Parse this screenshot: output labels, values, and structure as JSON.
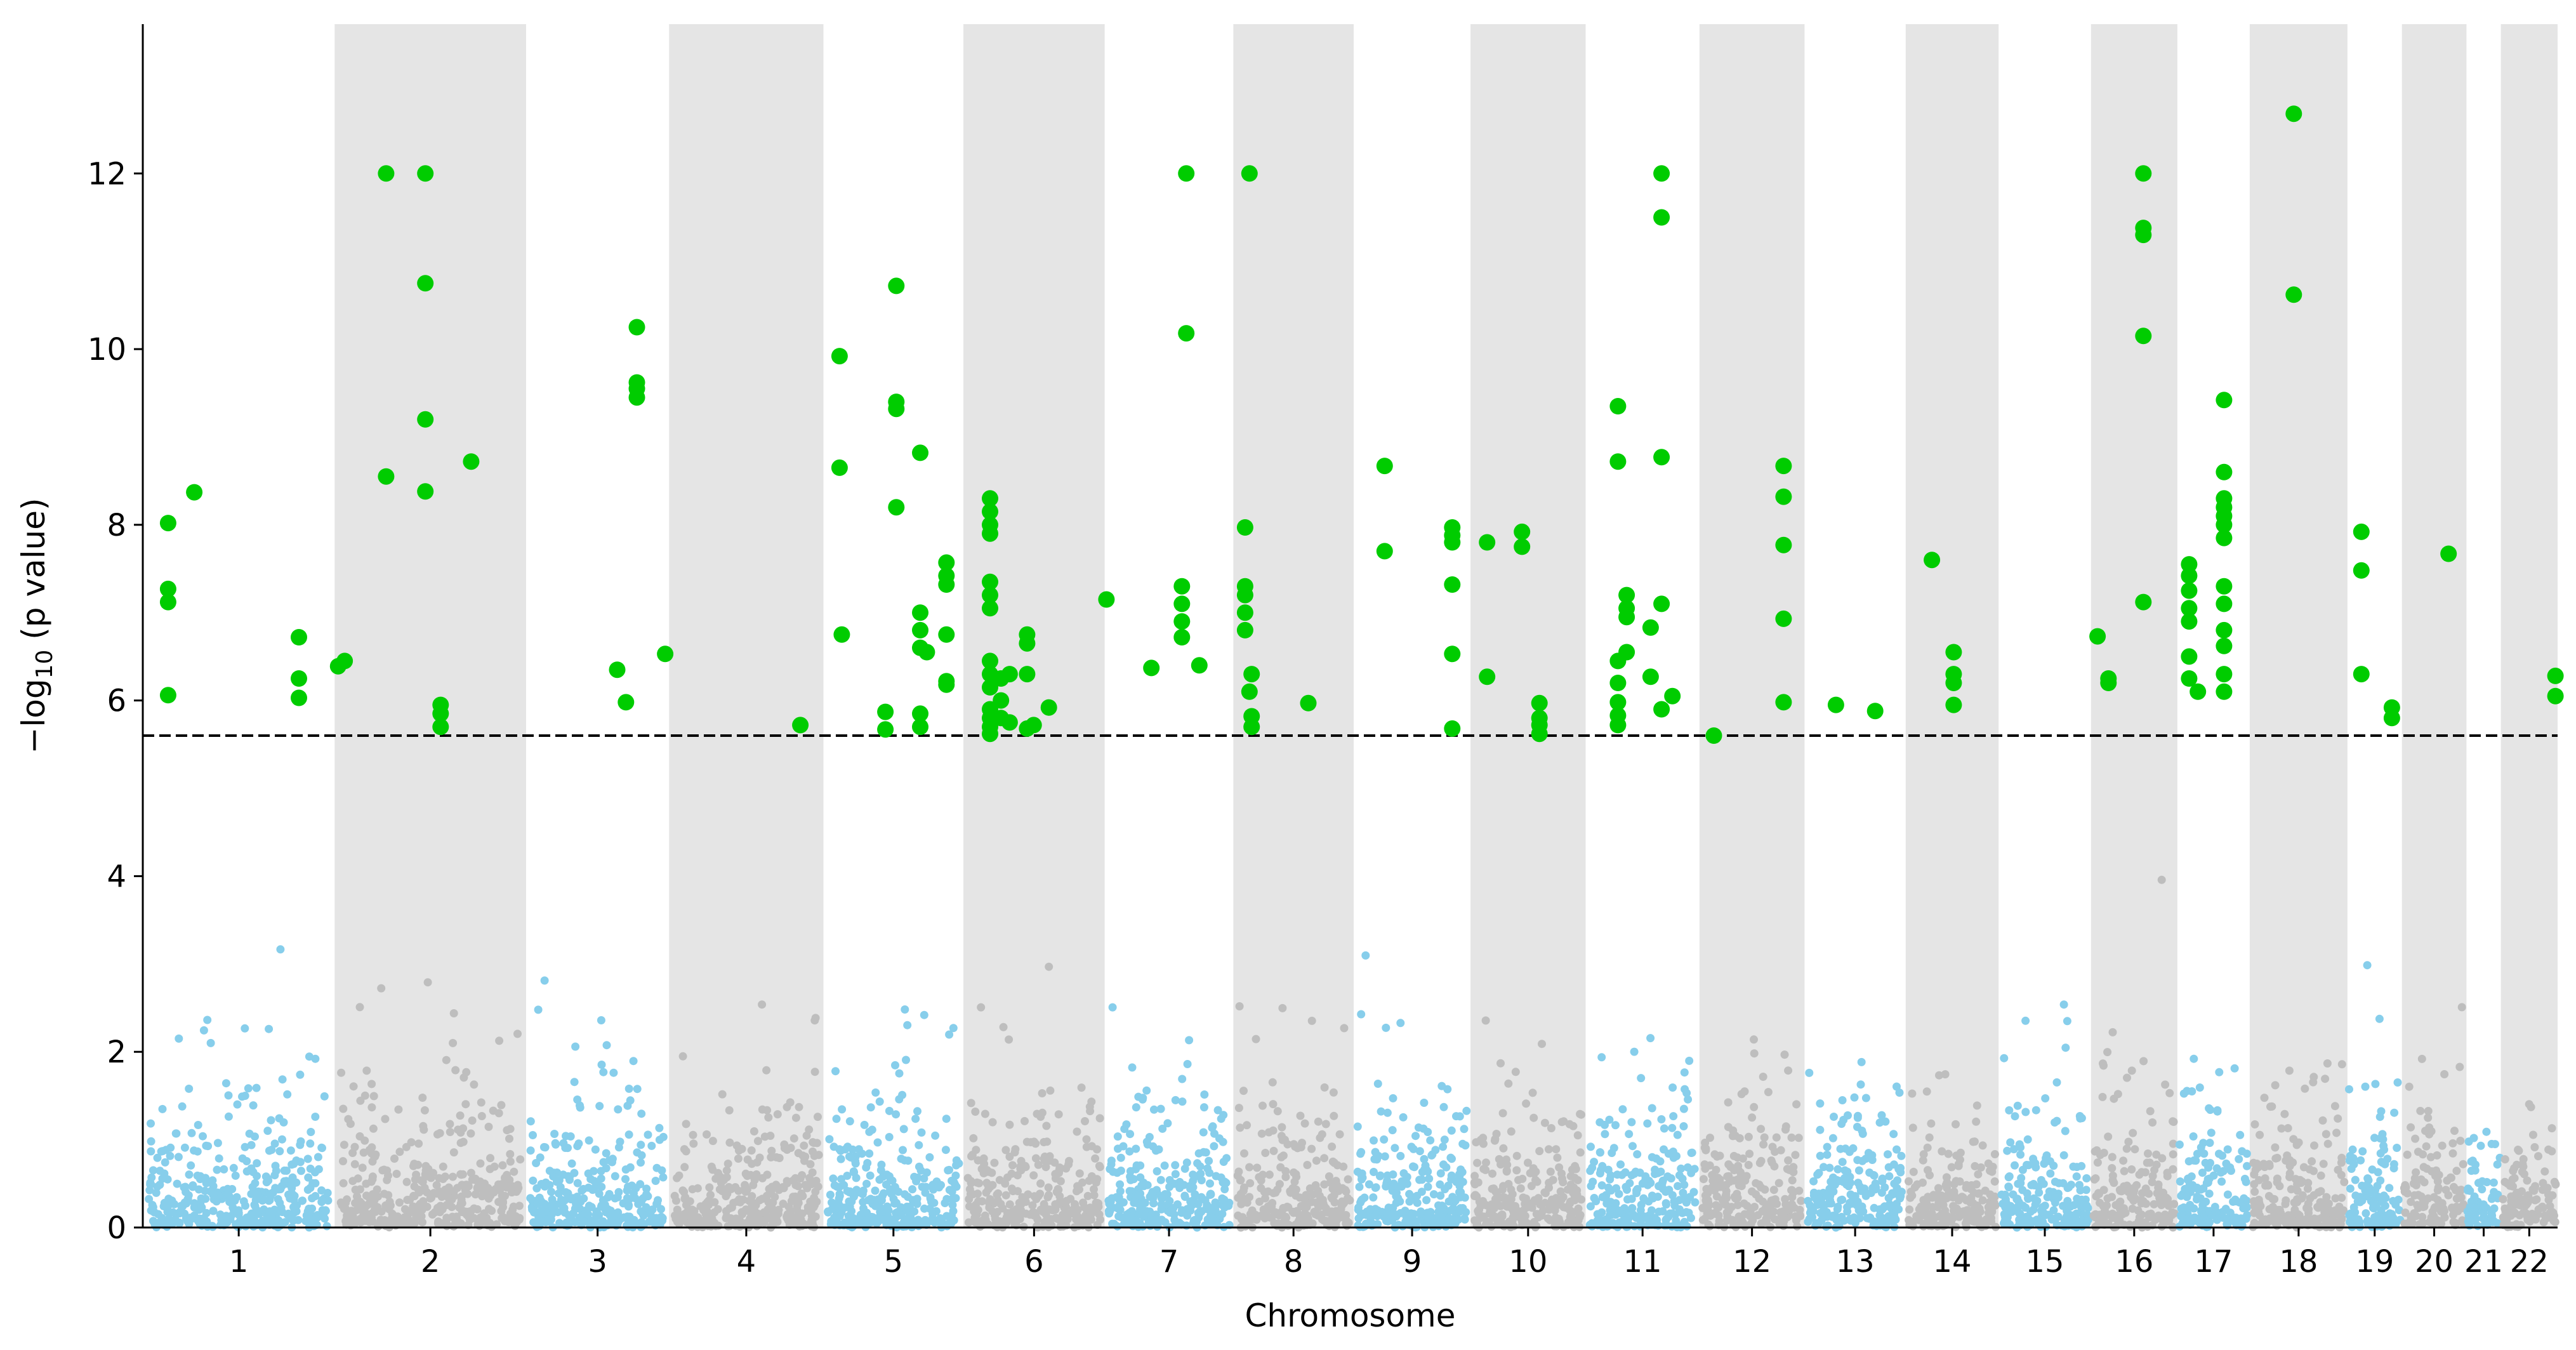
{
  "chart_data": {
    "type": "scatter",
    "title": "",
    "xlabel": "Chromosome",
    "ylabel_parts": [
      "−log",
      "10",
      " (p value)"
    ],
    "ylim": [
      0,
      13.7
    ],
    "yticks": [
      0,
      2,
      4,
      6,
      8,
      10,
      12
    ],
    "threshold": 5.6,
    "threshold_style": "dashed",
    "colors": {
      "odd_chromosome": "#87ceeb",
      "even_chromosome": "#bebebe",
      "significant": "#00cc00",
      "shade": "#e5e5e5",
      "threshold": "#000000"
    },
    "chromosomes": [
      {
        "label": "1",
        "range": [
          -0.3,
          43.7
        ]
      },
      {
        "label": "2",
        "range": [
          43.7,
          87.6
        ]
      },
      {
        "label": "3",
        "range": [
          87.6,
          120.4
        ]
      },
      {
        "label": "4",
        "range": [
          120.4,
          155.8
        ]
      },
      {
        "label": "5",
        "range": [
          155.8,
          187.9
        ]
      },
      {
        "label": "6",
        "range": [
          187.9,
          220.3
        ]
      },
      {
        "label": "7",
        "range": [
          220.3,
          249.8
        ]
      },
      {
        "label": "8",
        "range": [
          249.8,
          277.4
        ]
      },
      {
        "label": "9",
        "range": [
          277.4,
          304.2
        ]
      },
      {
        "label": "10",
        "range": [
          304.2,
          330.6
        ]
      },
      {
        "label": "11",
        "range": [
          330.6,
          356.7
        ]
      },
      {
        "label": "12",
        "range": [
          356.7,
          380.8
        ]
      },
      {
        "label": "13",
        "range": [
          380.8,
          404.0
        ]
      },
      {
        "label": "14",
        "range": [
          404.0,
          425.3
        ]
      },
      {
        "label": "15",
        "range": [
          425.3,
          446.5
        ]
      },
      {
        "label": "16",
        "range": [
          446.5,
          466.3
        ]
      },
      {
        "label": "17",
        "range": [
          466.3,
          482.9
        ]
      },
      {
        "label": "18",
        "range": [
          482.9,
          505.3
        ]
      },
      {
        "label": "19",
        "range": [
          505.3,
          517.8
        ]
      },
      {
        "label": "20",
        "range": [
          517.8,
          532.6
        ]
      },
      {
        "label": "21",
        "range": [
          532.6,
          540.5
        ]
      },
      {
        "label": "22",
        "range": [
          540.5,
          553.5
        ]
      }
    ],
    "significant_points": [
      {
        "x": 5.5,
        "y": 8.02
      },
      {
        "x": 5.5,
        "y": 7.27
      },
      {
        "x": 5.5,
        "y": 7.12
      },
      {
        "x": 5.5,
        "y": 6.06
      },
      {
        "x": 11.5,
        "y": 8.37
      },
      {
        "x": 35.5,
        "y": 6.72
      },
      {
        "x": 35.5,
        "y": 6.25
      },
      {
        "x": 35.5,
        "y": 6.03
      },
      {
        "x": 44.5,
        "y": 6.39
      },
      {
        "x": 46.0,
        "y": 6.45
      },
      {
        "x": 55.5,
        "y": 12.0
      },
      {
        "x": 55.5,
        "y": 8.55
      },
      {
        "x": 64.5,
        "y": 12.0
      },
      {
        "x": 64.5,
        "y": 10.75
      },
      {
        "x": 64.5,
        "y": 9.2
      },
      {
        "x": 64.5,
        "y": 8.38
      },
      {
        "x": 68.0,
        "y": 5.95
      },
      {
        "x": 68.0,
        "y": 5.85
      },
      {
        "x": 68.0,
        "y": 5.7
      },
      {
        "x": 75.0,
        "y": 8.72
      },
      {
        "x": 108.5,
        "y": 6.35
      },
      {
        "x": 110.5,
        "y": 5.98
      },
      {
        "x": 113.0,
        "y": 10.25
      },
      {
        "x": 113.0,
        "y": 9.62
      },
      {
        "x": 113.0,
        "y": 9.55
      },
      {
        "x": 113.0,
        "y": 9.45
      },
      {
        "x": 119.5,
        "y": 6.53
      },
      {
        "x": 150.5,
        "y": 5.72
      },
      {
        "x": 159.5,
        "y": 9.92
      },
      {
        "x": 159.5,
        "y": 8.65
      },
      {
        "x": 160.0,
        "y": 6.75
      },
      {
        "x": 172.5,
        "y": 10.72
      },
      {
        "x": 172.5,
        "y": 9.4
      },
      {
        "x": 172.5,
        "y": 9.32
      },
      {
        "x": 172.5,
        "y": 8.2
      },
      {
        "x": 170.0,
        "y": 5.87
      },
      {
        "x": 170.0,
        "y": 5.67
      },
      {
        "x": 178.0,
        "y": 8.82
      },
      {
        "x": 178.0,
        "y": 7.0
      },
      {
        "x": 178.0,
        "y": 6.8
      },
      {
        "x": 178.0,
        "y": 6.6
      },
      {
        "x": 178.0,
        "y": 5.85
      },
      {
        "x": 178.0,
        "y": 5.7
      },
      {
        "x": 179.5,
        "y": 6.55
      },
      {
        "x": 184.0,
        "y": 7.57
      },
      {
        "x": 184.0,
        "y": 7.42
      },
      {
        "x": 184.0,
        "y": 7.32
      },
      {
        "x": 184.0,
        "y": 6.75
      },
      {
        "x": 184.0,
        "y": 6.22
      },
      {
        "x": 184.0,
        "y": 6.18
      },
      {
        "x": 194.0,
        "y": 8.3
      },
      {
        "x": 194.0,
        "y": 8.15
      },
      {
        "x": 194.0,
        "y": 8.0
      },
      {
        "x": 194.0,
        "y": 7.9
      },
      {
        "x": 194.0,
        "y": 7.35
      },
      {
        "x": 194.0,
        "y": 7.2
      },
      {
        "x": 194.0,
        "y": 7.05
      },
      {
        "x": 194.0,
        "y": 6.45
      },
      {
        "x": 194.0,
        "y": 6.3
      },
      {
        "x": 194.0,
        "y": 6.15
      },
      {
        "x": 194.0,
        "y": 5.9
      },
      {
        "x": 194.0,
        "y": 5.8
      },
      {
        "x": 194.0,
        "y": 5.7
      },
      {
        "x": 194.0,
        "y": 5.62
      },
      {
        "x": 196.5,
        "y": 6.25
      },
      {
        "x": 196.5,
        "y": 6.0
      },
      {
        "x": 196.5,
        "y": 5.8
      },
      {
        "x": 198.5,
        "y": 6.3
      },
      {
        "x": 198.5,
        "y": 5.75
      },
      {
        "x": 202.5,
        "y": 6.75
      },
      {
        "x": 202.5,
        "y": 6.65
      },
      {
        "x": 202.5,
        "y": 6.3
      },
      {
        "x": 202.5,
        "y": 5.68
      },
      {
        "x": 204.0,
        "y": 5.72
      },
      {
        "x": 207.5,
        "y": 5.92
      },
      {
        "x": 220.7,
        "y": 7.15
      },
      {
        "x": 231.0,
        "y": 6.37
      },
      {
        "x": 239.0,
        "y": 12.0
      },
      {
        "x": 239.0,
        "y": 10.18
      },
      {
        "x": 238.0,
        "y": 7.3
      },
      {
        "x": 238.0,
        "y": 7.1
      },
      {
        "x": 238.0,
        "y": 6.9
      },
      {
        "x": 238.0,
        "y": 6.72
      },
      {
        "x": 242.0,
        "y": 6.4
      },
      {
        "x": 253.5,
        "y": 12.0
      },
      {
        "x": 252.5,
        "y": 7.97
      },
      {
        "x": 252.5,
        "y": 7.3
      },
      {
        "x": 252.5,
        "y": 7.2
      },
      {
        "x": 252.5,
        "y": 7.0
      },
      {
        "x": 252.5,
        "y": 6.8
      },
      {
        "x": 253.5,
        "y": 6.1
      },
      {
        "x": 254.0,
        "y": 6.3
      },
      {
        "x": 254.0,
        "y": 5.82
      },
      {
        "x": 254.0,
        "y": 5.7
      },
      {
        "x": 267.0,
        "y": 5.97
      },
      {
        "x": 284.5,
        "y": 8.67
      },
      {
        "x": 284.5,
        "y": 7.7
      },
      {
        "x": 300.0,
        "y": 7.97
      },
      {
        "x": 300.0,
        "y": 7.88
      },
      {
        "x": 300.0,
        "y": 7.8
      },
      {
        "x": 300.0,
        "y": 7.32
      },
      {
        "x": 300.0,
        "y": 6.53
      },
      {
        "x": 300.0,
        "y": 5.68
      },
      {
        "x": 308.0,
        "y": 6.27
      },
      {
        "x": 308.0,
        "y": 7.8
      },
      {
        "x": 316.0,
        "y": 7.92
      },
      {
        "x": 316.0,
        "y": 7.75
      },
      {
        "x": 320.0,
        "y": 5.97
      },
      {
        "x": 320.0,
        "y": 5.8
      },
      {
        "x": 320.0,
        "y": 5.72
      },
      {
        "x": 320.0,
        "y": 5.62
      },
      {
        "x": 338.0,
        "y": 9.35
      },
      {
        "x": 338.0,
        "y": 8.72
      },
      {
        "x": 338.0,
        "y": 6.45
      },
      {
        "x": 338.0,
        "y": 6.2
      },
      {
        "x": 338.0,
        "y": 5.98
      },
      {
        "x": 338.0,
        "y": 5.83
      },
      {
        "x": 338.0,
        "y": 5.72
      },
      {
        "x": 340.0,
        "y": 7.2
      },
      {
        "x": 340.0,
        "y": 7.05
      },
      {
        "x": 340.0,
        "y": 6.95
      },
      {
        "x": 340.0,
        "y": 6.55
      },
      {
        "x": 345.5,
        "y": 6.83
      },
      {
        "x": 345.5,
        "y": 6.27
      },
      {
        "x": 348.0,
        "y": 12.0
      },
      {
        "x": 348.0,
        "y": 11.5
      },
      {
        "x": 348.0,
        "y": 8.77
      },
      {
        "x": 348.0,
        "y": 7.1
      },
      {
        "x": 348.0,
        "y": 5.9
      },
      {
        "x": 350.5,
        "y": 6.05
      },
      {
        "x": 360.0,
        "y": 5.6
      },
      {
        "x": 376.0,
        "y": 8.67
      },
      {
        "x": 376.0,
        "y": 8.32
      },
      {
        "x": 376.0,
        "y": 7.77
      },
      {
        "x": 376.0,
        "y": 6.93
      },
      {
        "x": 376.0,
        "y": 5.98
      },
      {
        "x": 388.0,
        "y": 5.95
      },
      {
        "x": 397.0,
        "y": 5.88
      },
      {
        "x": 410.0,
        "y": 7.6
      },
      {
        "x": 415.0,
        "y": 6.55
      },
      {
        "x": 415.0,
        "y": 6.3
      },
      {
        "x": 415.0,
        "y": 6.2
      },
      {
        "x": 415.0,
        "y": 5.95
      },
      {
        "x": 448.0,
        "y": 6.73
      },
      {
        "x": 450.5,
        "y": 6.25
      },
      {
        "x": 450.5,
        "y": 6.2
      },
      {
        "x": 458.5,
        "y": 12.0
      },
      {
        "x": 458.5,
        "y": 11.38
      },
      {
        "x": 458.5,
        "y": 11.3
      },
      {
        "x": 458.5,
        "y": 10.15
      },
      {
        "x": 458.5,
        "y": 7.12
      },
      {
        "x": 469.0,
        "y": 7.55
      },
      {
        "x": 469.0,
        "y": 7.42
      },
      {
        "x": 469.0,
        "y": 7.25
      },
      {
        "x": 469.0,
        "y": 7.05
      },
      {
        "x": 469.0,
        "y": 6.9
      },
      {
        "x": 469.0,
        "y": 6.5
      },
      {
        "x": 469.0,
        "y": 6.25
      },
      {
        "x": 471.0,
        "y": 6.1
      },
      {
        "x": 477.0,
        "y": 9.42
      },
      {
        "x": 477.0,
        "y": 8.6
      },
      {
        "x": 477.0,
        "y": 8.3
      },
      {
        "x": 477.0,
        "y": 8.2
      },
      {
        "x": 477.0,
        "y": 8.1
      },
      {
        "x": 477.0,
        "y": 8.0
      },
      {
        "x": 477.0,
        "y": 7.85
      },
      {
        "x": 477.0,
        "y": 7.3
      },
      {
        "x": 477.0,
        "y": 7.1
      },
      {
        "x": 477.0,
        "y": 6.8
      },
      {
        "x": 477.0,
        "y": 6.62
      },
      {
        "x": 477.0,
        "y": 6.3
      },
      {
        "x": 477.0,
        "y": 6.1
      },
      {
        "x": 493.0,
        "y": 12.68
      },
      {
        "x": 493.0,
        "y": 10.62
      },
      {
        "x": 508.5,
        "y": 7.92
      },
      {
        "x": 508.5,
        "y": 7.48
      },
      {
        "x": 508.5,
        "y": 6.3
      },
      {
        "x": 515.5,
        "y": 5.92
      },
      {
        "x": 515.5,
        "y": 5.8
      },
      {
        "x": 528.5,
        "y": 7.67
      },
      {
        "x": 553.0,
        "y": 6.28
      },
      {
        "x": 553.0,
        "y": 6.05
      }
    ]
  }
}
